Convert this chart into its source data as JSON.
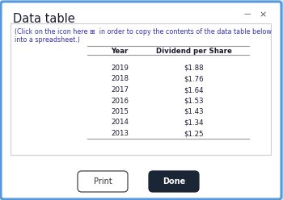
{
  "title": "Data table",
  "subtitle_part1": "(Click on the icon here ⊞  in order to copy the contents of the data table below",
  "subtitle_part2": "into a spreadsheet.)",
  "col_headers": [
    "Year",
    "Dividend per Share"
  ],
  "rows": [
    [
      "2019",
      "$1.88"
    ],
    [
      "2018",
      "$1.76"
    ],
    [
      "2017",
      "$1.64"
    ],
    [
      "2016",
      "$1.53"
    ],
    [
      "2015",
      "$1.43"
    ],
    [
      "2014",
      "$1.34"
    ],
    [
      "2013",
      "$1.25"
    ]
  ],
  "bg_color": "#e8e8e8",
  "dialog_bg": "#ffffff",
  "border_color": "#5599dd",
  "title_color": "#1a1a2e",
  "subtitle_color": "#3333aa",
  "header_color": "#1a1a2e",
  "data_color": "#1a1a2e",
  "print_btn_bg": "#ffffff",
  "print_btn_border": "#444444",
  "done_btn_bg": "#1a2535",
  "done_btn_text": "#ffffff",
  "print_btn_text": "#333333",
  "minus_x_color": "#555555",
  "line_color": "#999999",
  "inner_border_color": "#cccccc"
}
